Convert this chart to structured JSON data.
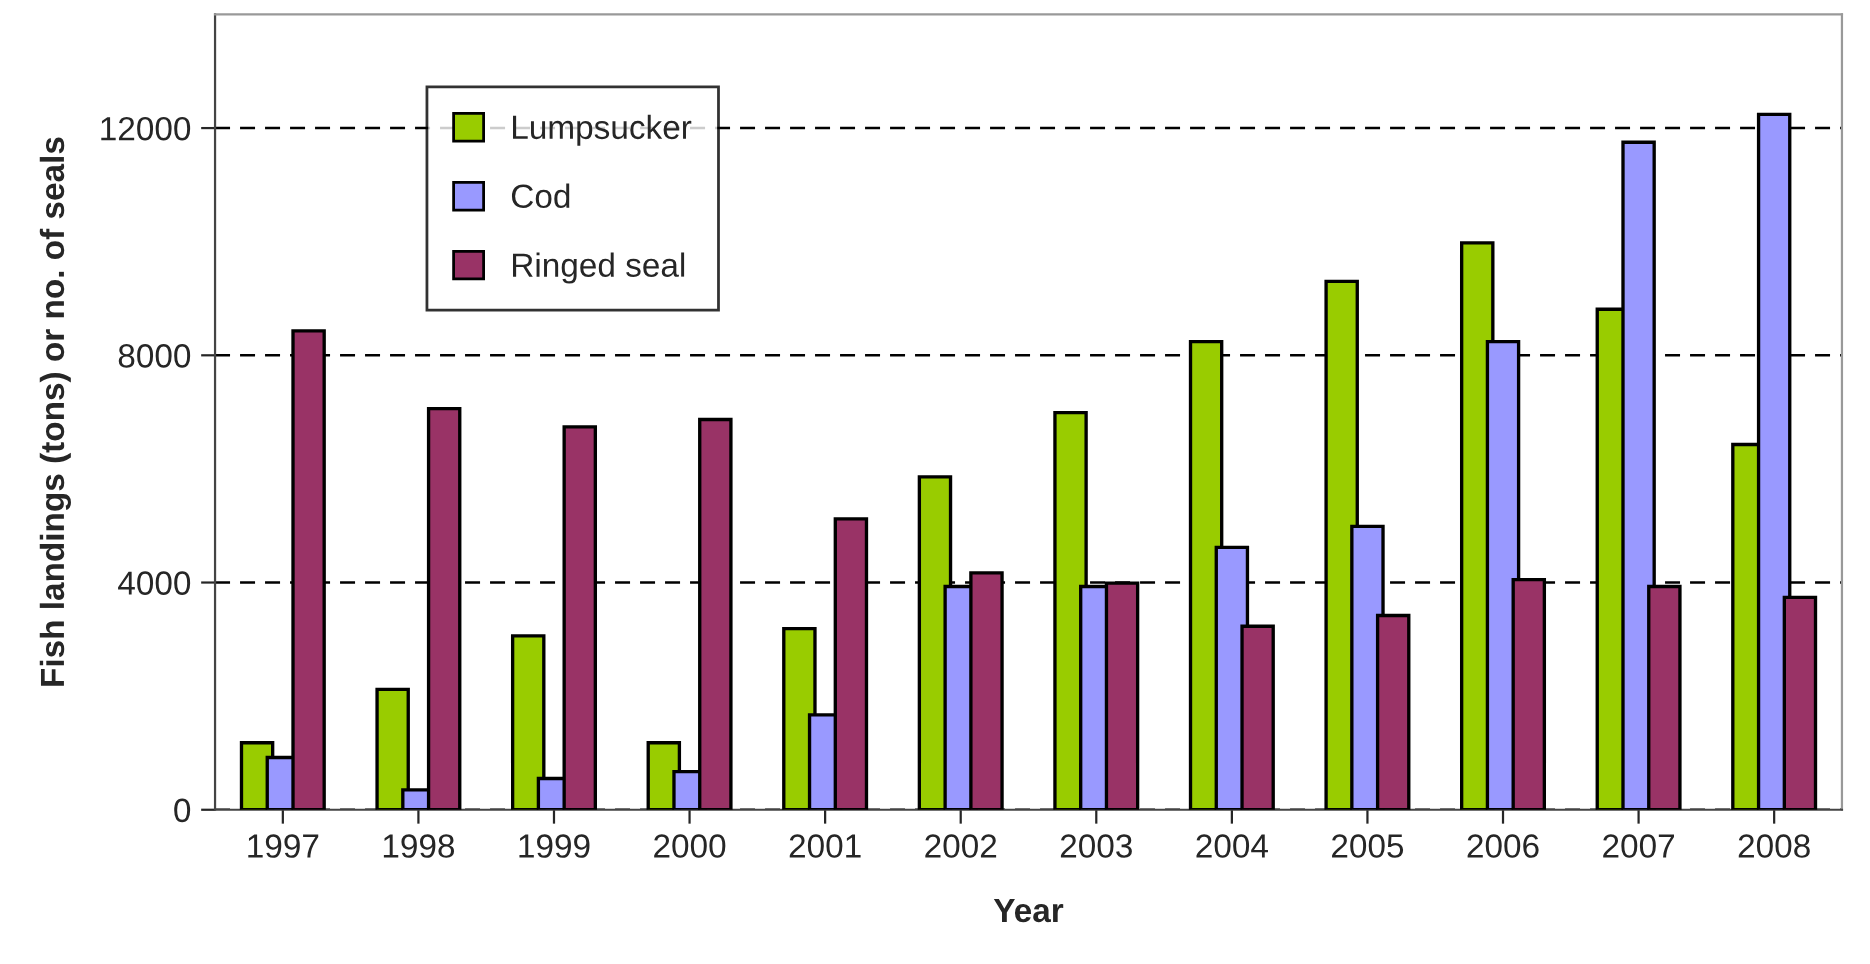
{
  "chart_data": {
    "type": "bar",
    "xlabel": "Year",
    "ylabel": "Fish landings (tons) or no. of seals",
    "categories": [
      "1997",
      "1998",
      "1999",
      "2000",
      "2001",
      "2002",
      "2003",
      "2004",
      "2005",
      "2006",
      "2007",
      "2008"
    ],
    "series": [
      {
        "name": "Lumpsucker",
        "color": "#99cc00",
        "values": [
          1180,
          2120,
          3060,
          1180,
          3190,
          5860,
          6990,
          8240,
          9300,
          9980,
          8810,
          6430
        ]
      },
      {
        "name": "Cod",
        "color": "#9999ff",
        "values": [
          920,
          350,
          550,
          670,
          1670,
          3930,
          3930,
          4620,
          4990,
          8240,
          11750,
          12240
        ]
      },
      {
        "name": "Ringed seal",
        "color": "#993366",
        "values": [
          8430,
          7060,
          6740,
          6870,
          5120,
          4170,
          3990,
          3230,
          3420,
          4050,
          3930,
          3740
        ]
      }
    ],
    "ylim": [
      0,
      14000
    ],
    "yticks": [
      0,
      4000,
      8000,
      12000
    ],
    "grid": "y",
    "legend": "top left"
  }
}
